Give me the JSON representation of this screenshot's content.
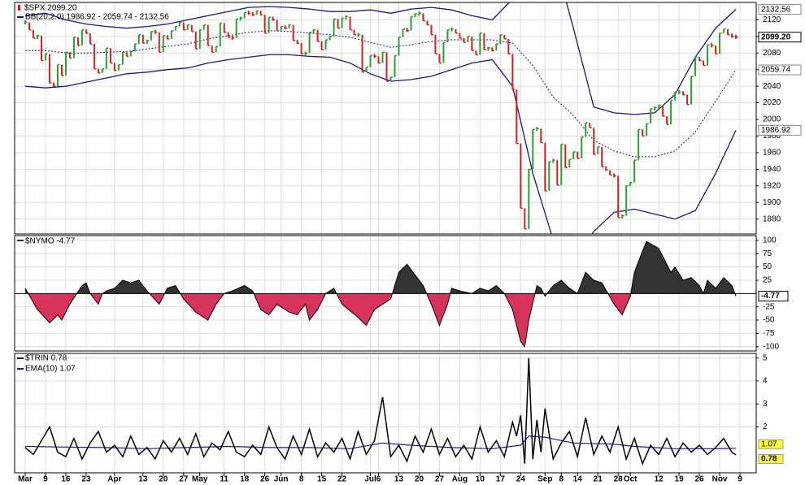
{
  "xaxis": {
    "xlim": [
      -2.6,
      180
    ],
    "xticks": [
      {
        "value": 0,
        "label": "Mar"
      },
      {
        "value": 5,
        "label": "9"
      },
      {
        "value": 10,
        "label": "16"
      },
      {
        "value": 15,
        "label": "23"
      },
      {
        "value": 22,
        "label": "Apr"
      },
      {
        "value": 29,
        "label": "13"
      },
      {
        "value": 34,
        "label": "20"
      },
      {
        "value": 39,
        "label": "27"
      },
      {
        "value": 43,
        "label": "May"
      },
      {
        "value": 49,
        "label": "11"
      },
      {
        "value": 54,
        "label": "18"
      },
      {
        "value": 59,
        "label": "26"
      },
      {
        "value": 63,
        "label": "Jun"
      },
      {
        "value": 68,
        "label": "8"
      },
      {
        "value": 73,
        "label": "15"
      },
      {
        "value": 78,
        "label": "22"
      },
      {
        "value": 85,
        "label": "Jul"
      },
      {
        "value": 87,
        "label": "6"
      },
      {
        "value": 92,
        "label": "13"
      },
      {
        "value": 97,
        "label": "20"
      },
      {
        "value": 102,
        "label": "27"
      },
      {
        "value": 107,
        "label": "Aug"
      },
      {
        "value": 112,
        "label": "10"
      },
      {
        "value": 117,
        "label": "17"
      },
      {
        "value": 122,
        "label": "24"
      },
      {
        "value": 128,
        "label": "Sep"
      },
      {
        "value": 132,
        "label": "8"
      },
      {
        "value": 136,
        "label": "14"
      },
      {
        "value": 141,
        "label": "21"
      },
      {
        "value": 146,
        "label": "28"
      },
      {
        "value": 149,
        "label": "Oct"
      },
      {
        "value": 156,
        "label": "12"
      },
      {
        "value": 161,
        "label": "19"
      },
      {
        "value": 166,
        "label": "26"
      },
      {
        "value": 171,
        "label": "Nov"
      },
      {
        "value": 176,
        "label": "9"
      }
    ]
  },
  "chart_data": [
    {
      "type": "price",
      "title": "$SPX 2099.20",
      "band_label": "BB(20,2.0) 1986.92 - 2059.74 - 2132.56",
      "up_color": "#2e9e2e",
      "down_color": "#d42020",
      "close": [
        2117,
        2108,
        2098,
        2101,
        2071,
        2079,
        2044,
        2040,
        2066,
        2053,
        2081,
        2074,
        2099,
        2089,
        2108,
        2104,
        2091,
        2061,
        2056,
        2061,
        2086,
        2068,
        2059,
        2066,
        2081,
        2076,
        2082,
        2091,
        2102,
        2092,
        2095,
        2106,
        2105,
        2081,
        2101,
        2097,
        2107,
        2112,
        2117,
        2108,
        2114,
        2106,
        2085,
        2108,
        2114,
        2089,
        2081,
        2088,
        2116,
        2105,
        2099,
        2098,
        2121,
        2122,
        2129,
        2128,
        2126,
        2131,
        2126,
        2104,
        2123,
        2120,
        2107,
        2112,
        2110,
        2114,
        2095,
        2092,
        2079,
        2080,
        2105,
        2108,
        2094,
        2084,
        2096,
        2100,
        2121,
        2110,
        2122,
        2124,
        2108,
        2102,
        2102,
        2057,
        2063,
        2077,
        2076,
        2068,
        2081,
        2046,
        2051,
        2077,
        2099,
        2109,
        2107,
        2124,
        2127,
        2128,
        2119,
        2114,
        2102,
        2079,
        2068,
        2093,
        2108,
        2109,
        2104,
        2098,
        2093,
        2100,
        2083,
        2078,
        2104,
        2084,
        2086,
        2083,
        2091,
        2102,
        2097,
        2079,
        2036,
        1971,
        1893,
        1868,
        1940,
        1988,
        1989,
        1972,
        1914,
        1949,
        1951,
        1921,
        1970,
        1942,
        1952,
        1961,
        1953,
        1979,
        1996,
        1990,
        1958,
        1967,
        1943,
        1939,
        1933,
        1932,
        1882,
        1884,
        1920,
        1924,
        1951,
        1988,
        1980,
        1995,
        2013,
        2014,
        2017,
        2004,
        1994,
        2023,
        2033,
        2033,
        2030,
        2018,
        2052,
        2075,
        2071,
        2065,
        2090,
        2089,
        2079,
        2104,
        2109,
        2102,
        2100,
        2099.2
      ],
      "bands": {
        "color": "#1a1a7a",
        "x": [
          0,
          5,
          10,
          15,
          20,
          25,
          30,
          35,
          40,
          45,
          50,
          55,
          60,
          65,
          70,
          75,
          80,
          85,
          90,
          95,
          100,
          105,
          110,
          115,
          120,
          125,
          130,
          135,
          140,
          145,
          150,
          155,
          160,
          165,
          170,
          175
        ],
        "upper": [
          2125,
          2128,
          2120,
          2115,
          2112,
          2110,
          2112,
          2115,
          2120,
          2125,
          2130,
          2135,
          2136,
          2135,
          2133,
          2130,
          2130,
          2132,
          2128,
          2133,
          2135,
          2132,
          2125,
          2120,
          2145,
          2190,
          2200,
          2110,
          2015,
          2008,
          2006,
          2008,
          2030,
          2075,
          2110,
          2132.56
        ],
        "middle": [
          2083,
          2083,
          2080,
          2080,
          2081,
          2082,
          2085,
          2088,
          2091,
          2097,
          2101,
          2105,
          2107,
          2106,
          2104,
          2102,
          2099,
          2093,
          2087,
          2090,
          2094,
          2096,
          2096,
          2096,
          2092,
          2065,
          2027,
          2005,
          1975,
          1962,
          1955,
          1955,
          1962,
          1985,
          2022,
          2059.74
        ],
        "lower": [
          2040,
          2038,
          2040,
          2045,
          2050,
          2055,
          2057,
          2060,
          2062,
          2068,
          2072,
          2075,
          2078,
          2078,
          2076,
          2075,
          2068,
          2055,
          2046,
          2048,
          2052,
          2060,
          2068,
          2072,
          2040,
          1935,
          1855,
          1830,
          1865,
          1888,
          1892,
          1886,
          1880,
          1890,
          1935,
          1986.92
        ]
      },
      "ylim": [
        1862,
        2141
      ],
      "yticks": [
        1880,
        1900,
        1920,
        1940,
        1960,
        1980,
        2000,
        2020,
        2040,
        2060,
        2080,
        2100,
        2120
      ],
      "last_labels": [
        {
          "value": 2132.56,
          "label": "2132.56"
        },
        {
          "value": 2099.2,
          "label": "2099.20"
        },
        {
          "value": 2059.74,
          "label": "2059.74"
        },
        {
          "value": 1986.92,
          "label": "1986.92"
        }
      ],
      "grid": true
    },
    {
      "type": "area",
      "title": "$NYMO -4.77",
      "pos_color": "#333333",
      "neg_color": "#d6345a",
      "x": [
        0,
        3,
        6,
        8,
        9,
        11,
        14,
        15,
        16,
        18,
        19,
        20,
        22,
        24,
        26,
        28,
        30,
        33,
        35,
        37,
        39,
        42,
        45,
        47,
        49,
        51,
        54,
        56,
        58,
        60,
        62,
        65,
        67,
        69,
        70,
        72,
        74,
        76,
        78,
        82,
        84,
        86,
        88,
        90,
        92,
        94,
        96,
        98,
        100,
        102,
        104,
        105,
        107,
        110,
        112,
        114,
        116,
        118,
        120,
        122,
        123,
        124,
        126,
        127,
        128,
        130,
        132,
        134,
        136,
        138,
        140,
        142,
        145,
        147,
        149,
        150,
        152,
        153,
        156,
        159,
        160,
        162,
        164,
        166,
        167,
        168,
        170,
        172,
        174,
        175
      ],
      "values": [
        10,
        -30,
        -55,
        -40,
        -50,
        -20,
        15,
        20,
        0,
        -20,
        0,
        5,
        10,
        25,
        20,
        25,
        5,
        -20,
        10,
        15,
        -10,
        -35,
        -50,
        -20,
        0,
        5,
        15,
        5,
        -30,
        -40,
        -20,
        -35,
        -40,
        -20,
        -50,
        -30,
        0,
        10,
        -20,
        -45,
        -60,
        -30,
        -20,
        -10,
        40,
        55,
        35,
        15,
        -20,
        -60,
        -20,
        10,
        5,
        0,
        10,
        5,
        15,
        0,
        -30,
        -90,
        -100,
        -50,
        15,
        10,
        -5,
        15,
        25,
        10,
        0,
        40,
        25,
        20,
        -20,
        -40,
        -5,
        40,
        80,
        98,
        85,
        40,
        50,
        25,
        30,
        15,
        0,
        25,
        10,
        30,
        15,
        -4.77
      ],
      "ylim": [
        -108,
        109
      ],
      "yticks": [
        -100,
        -75,
        -50,
        -25,
        25,
        50,
        75,
        100
      ],
      "last_label": {
        "value": -4.77,
        "label": "-4.77"
      },
      "grid": true
    },
    {
      "type": "line",
      "title": "$TRIN 0.78",
      "color": "#000000",
      "x": [
        0,
        2,
        4,
        6,
        8,
        10,
        12,
        14,
        16,
        18,
        20,
        22,
        24,
        26,
        28,
        30,
        32,
        34,
        36,
        38,
        40,
        42,
        44,
        46,
        48,
        50,
        52,
        54,
        56,
        58,
        60,
        62,
        64,
        66,
        68,
        70,
        72,
        74,
        76,
        78,
        80,
        82,
        84,
        86,
        88,
        90,
        92,
        94,
        96,
        98,
        100,
        102,
        104,
        106,
        108,
        110,
        112,
        114,
        116,
        118,
        120,
        121,
        122,
        123,
        124,
        125,
        126,
        127,
        128,
        130,
        132,
        134,
        136,
        138,
        140,
        142,
        144,
        146,
        148,
        150,
        152,
        154,
        156,
        158,
        160,
        162,
        164,
        166,
        168,
        170,
        172,
        174,
        175
      ],
      "values": [
        1.1,
        0.8,
        1.4,
        2.0,
        0.9,
        0.7,
        1.5,
        0.6,
        1.3,
        1.8,
        0.9,
        1.2,
        0.7,
        1.6,
        0.8,
        1.1,
        0.6,
        1.4,
        0.9,
        1.5,
        0.8,
        1.7,
        0.7,
        1.3,
        1.0,
        1.8,
        0.9,
        0.7,
        1.2,
        0.8,
        2.0,
        1.1,
        0.6,
        1.6,
        0.8,
        1.9,
        0.7,
        1.3,
        0.9,
        1.5,
        0.6,
        1.8,
        0.8,
        1.4,
        3.3,
        0.7,
        1.2,
        0.5,
        1.6,
        0.9,
        1.9,
        0.8,
        1.5,
        0.7,
        1.2,
        0.6,
        2.0,
        0.9,
        1.4,
        0.7,
        2.2,
        1.6,
        2.5,
        0.4,
        5.0,
        0.6,
        2.3,
        0.9,
        2.8,
        0.6,
        1.3,
        1.8,
        0.7,
        2.4,
        0.8,
        1.6,
        0.9,
        2.0,
        0.6,
        1.5,
        0.4,
        1.2,
        0.8,
        1.5,
        0.7,
        1.3,
        0.9,
        1.2,
        0.8,
        1.1,
        1.5,
        0.9,
        0.78
      ],
      "ema": {
        "name": "EMA(10) 1.07",
        "color": "#1a1a9a",
        "x": [
          0,
          10,
          20,
          30,
          40,
          50,
          60,
          70,
          80,
          88,
          95,
          105,
          115,
          122,
          124,
          128,
          135,
          145,
          150,
          160,
          170,
          175
        ],
        "values": [
          1.15,
          1.12,
          1.1,
          1.05,
          1.1,
          1.15,
          1.1,
          1.1,
          1.05,
          1.3,
          1.2,
          1.1,
          1.05,
          1.2,
          1.6,
          1.55,
          1.3,
          1.25,
          1.15,
          1.05,
          1.05,
          1.07
        ]
      },
      "ylim": [
        0,
        5.2
      ],
      "yticks": [
        2,
        3,
        4,
        5
      ],
      "last_labels": [
        {
          "value": 1.07,
          "label": "1.07"
        },
        {
          "value": 0.78,
          "label": "0.78"
        }
      ],
      "grid": true
    }
  ]
}
